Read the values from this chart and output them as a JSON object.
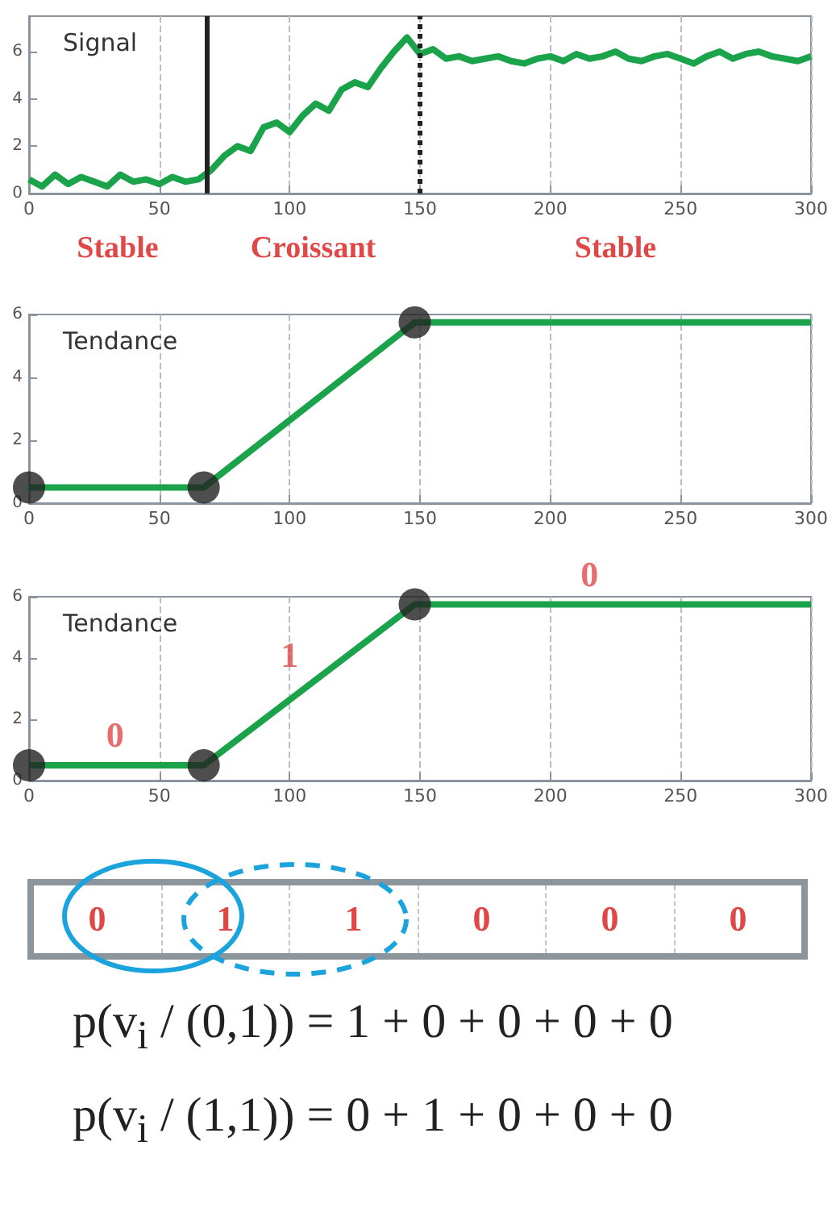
{
  "chart_data": [
    {
      "type": "line",
      "title": "Signal",
      "xlim": [
        0,
        300
      ],
      "xticks": [
        0,
        50,
        100,
        150,
        200,
        250,
        300
      ],
      "ylim": [
        0,
        7.5
      ],
      "yticks": [
        0,
        2,
        4,
        6
      ],
      "grid": "x",
      "marker": "none",
      "x": [
        0,
        5,
        10,
        15,
        20,
        25,
        30,
        35,
        40,
        45,
        50,
        55,
        60,
        65,
        70,
        75,
        80,
        85,
        90,
        95,
        100,
        105,
        110,
        115,
        120,
        125,
        130,
        135,
        140,
        145,
        150,
        155,
        160,
        165,
        170,
        175,
        180,
        185,
        190,
        195,
        200,
        205,
        210,
        215,
        220,
        225,
        230,
        235,
        240,
        245,
        250,
        255,
        260,
        265,
        270,
        275,
        280,
        285,
        290,
        295,
        300
      ],
      "series": [
        {
          "color": "#1aa34a",
          "values": [
            0.6,
            0.3,
            0.8,
            0.4,
            0.7,
            0.5,
            0.3,
            0.8,
            0.5,
            0.6,
            0.4,
            0.7,
            0.5,
            0.6,
            1.0,
            1.6,
            2.0,
            1.8,
            2.8,
            3.0,
            2.6,
            3.3,
            3.8,
            3.5,
            4.4,
            4.7,
            4.5,
            5.3,
            6.0,
            6.6,
            5.9,
            6.1,
            5.7,
            5.8,
            5.6,
            5.7,
            5.8,
            5.6,
            5.5,
            5.7,
            5.8,
            5.6,
            5.9,
            5.7,
            5.8,
            6.0,
            5.7,
            5.6,
            5.8,
            5.9,
            5.7,
            5.5,
            5.8,
            6.0,
            5.7,
            5.9,
            6.0,
            5.8,
            5.7,
            5.6,
            5.8
          ]
        }
      ],
      "ref_lines": [
        {
          "axis": "x",
          "value": 68,
          "color": "#222222",
          "line_style": "solid"
        },
        {
          "axis": "x",
          "value": 150,
          "color": "#222222",
          "line_style": "dotted"
        }
      ],
      "annotations": [
        "Stable",
        "Croissant",
        "Stable"
      ]
    },
    {
      "type": "line",
      "title": "Tendance",
      "xlim": [
        0,
        300
      ],
      "xticks": [
        0,
        50,
        100,
        150,
        200,
        250,
        300
      ],
      "ylim": [
        0,
        6
      ],
      "yticks": [
        0,
        2,
        4,
        6
      ],
      "grid": "x",
      "series": [
        {
          "color": "#1aa34a",
          "marker": "none",
          "x": [
            0,
            67,
            148,
            300
          ],
          "values": [
            0.5,
            0.5,
            5.75,
            5.75
          ]
        },
        {
          "type": "scatter",
          "color": "#222222",
          "marker": "circle",
          "x": [
            0,
            67,
            148
          ],
          "values": [
            0.5,
            0.5,
            5.75
          ]
        }
      ]
    },
    {
      "type": "line",
      "title": "Tendance",
      "xlim": [
        0,
        300
      ],
      "xticks": [
        0,
        50,
        100,
        150,
        200,
        250,
        300
      ],
      "ylim": [
        0,
        6
      ],
      "yticks": [
        0,
        2,
        4,
        6
      ],
      "grid": "x",
      "series": [
        {
          "color": "#1aa34a",
          "marker": "none",
          "x": [
            0,
            67,
            148,
            300
          ],
          "values": [
            0.5,
            0.5,
            5.75,
            5.75
          ]
        },
        {
          "type": "scatter",
          "color": "#222222",
          "marker": "circle",
          "x": [
            0,
            67,
            148
          ],
          "values": [
            0.5,
            0.5,
            5.75
          ]
        }
      ],
      "annotations": [
        {
          "text": "0",
          "x": 33,
          "y": 0.5
        },
        {
          "text": "1",
          "x": 100,
          "y": 3.1
        },
        {
          "text": "0",
          "x": 215,
          "y": 5.75
        }
      ]
    },
    {
      "type": "other",
      "categories": [
        "0",
        "1",
        "1",
        "0",
        "0",
        "0"
      ],
      "annotations": [
        "p(v$_{i}$ / (0,1)) = 1 + 0 + 0 + 0 + 0",
        "p(v$_{i}$ / (1,1)) = 0 + 1 + 0 + 0 + 0"
      ]
    }
  ]
}
